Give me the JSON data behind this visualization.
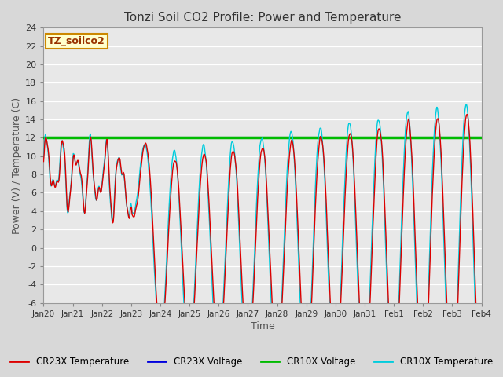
{
  "title": "Tonzi Soil CO2 Profile: Power and Temperature",
  "xlabel": "Time",
  "ylabel": "Power (V) / Temperature (C)",
  "ylim": [
    -6,
    24
  ],
  "yticks": [
    -6,
    -4,
    -2,
    0,
    2,
    4,
    6,
    8,
    10,
    12,
    14,
    16,
    18,
    20,
    22,
    24
  ],
  "xtick_labels": [
    "Jan 20",
    "Jan 21",
    "Jan 22",
    "Jan 23",
    "Jan 24",
    "Jan 25",
    "Jan 26",
    "Jan 27",
    "Jan 28",
    "Jan 29",
    "Jan 30",
    "Jan 31",
    "Feb 1",
    "Feb 2",
    "Feb 3",
    "Feb 4"
  ],
  "cr10x_voltage_level": 12.0,
  "label_box_text": "TZ_soilco2",
  "label_box_color": "#ffffcc",
  "label_box_edge": "#cc8800",
  "colors": {
    "cr23x_temp": "#dd0000",
    "cr23x_voltage": "#0000dd",
    "cr10x_voltage": "#00bb00",
    "cr10x_temp": "#00ccdd"
  },
  "legend_labels": [
    "CR23X Temperature",
    "CR23X Voltage",
    "CR10X Voltage",
    "CR10X Temperature"
  ],
  "bg_color": "#d8d8d8",
  "plot_bg_color": "#e8e8e8",
  "grid_color": "#ffffff",
  "title_color": "#333333",
  "axis_label_color": "#555555"
}
